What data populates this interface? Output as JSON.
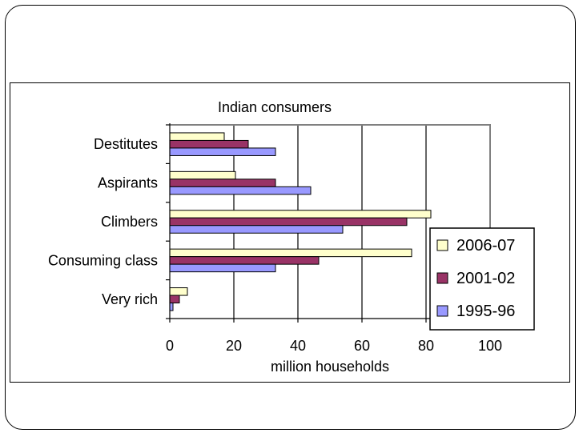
{
  "chart_data": {
    "type": "bar",
    "orientation": "horizontal",
    "title": "Indian consumers",
    "xlabel": "million households",
    "ylabel": "",
    "xlim": [
      0,
      100
    ],
    "xticks": [
      "0",
      "20",
      "40",
      "60",
      "80",
      "100"
    ],
    "categories": [
      "Destitutes",
      "Aspirants",
      "Climbers",
      "Consuming class",
      "Very rich"
    ],
    "series": [
      {
        "name": "2006-07",
        "color": "#ffffcc",
        "values": [
          17,
          20.5,
          81.5,
          75.5,
          5.5
        ]
      },
      {
        "name": "2001-02",
        "color": "#993366",
        "values": [
          24.5,
          33,
          74,
          46.5,
          3
        ]
      },
      {
        "name": "1995-96",
        "color": "#9999ff",
        "values": [
          33,
          44,
          54,
          33,
          1
        ]
      }
    ],
    "grid": "vertical",
    "legend": "right"
  }
}
